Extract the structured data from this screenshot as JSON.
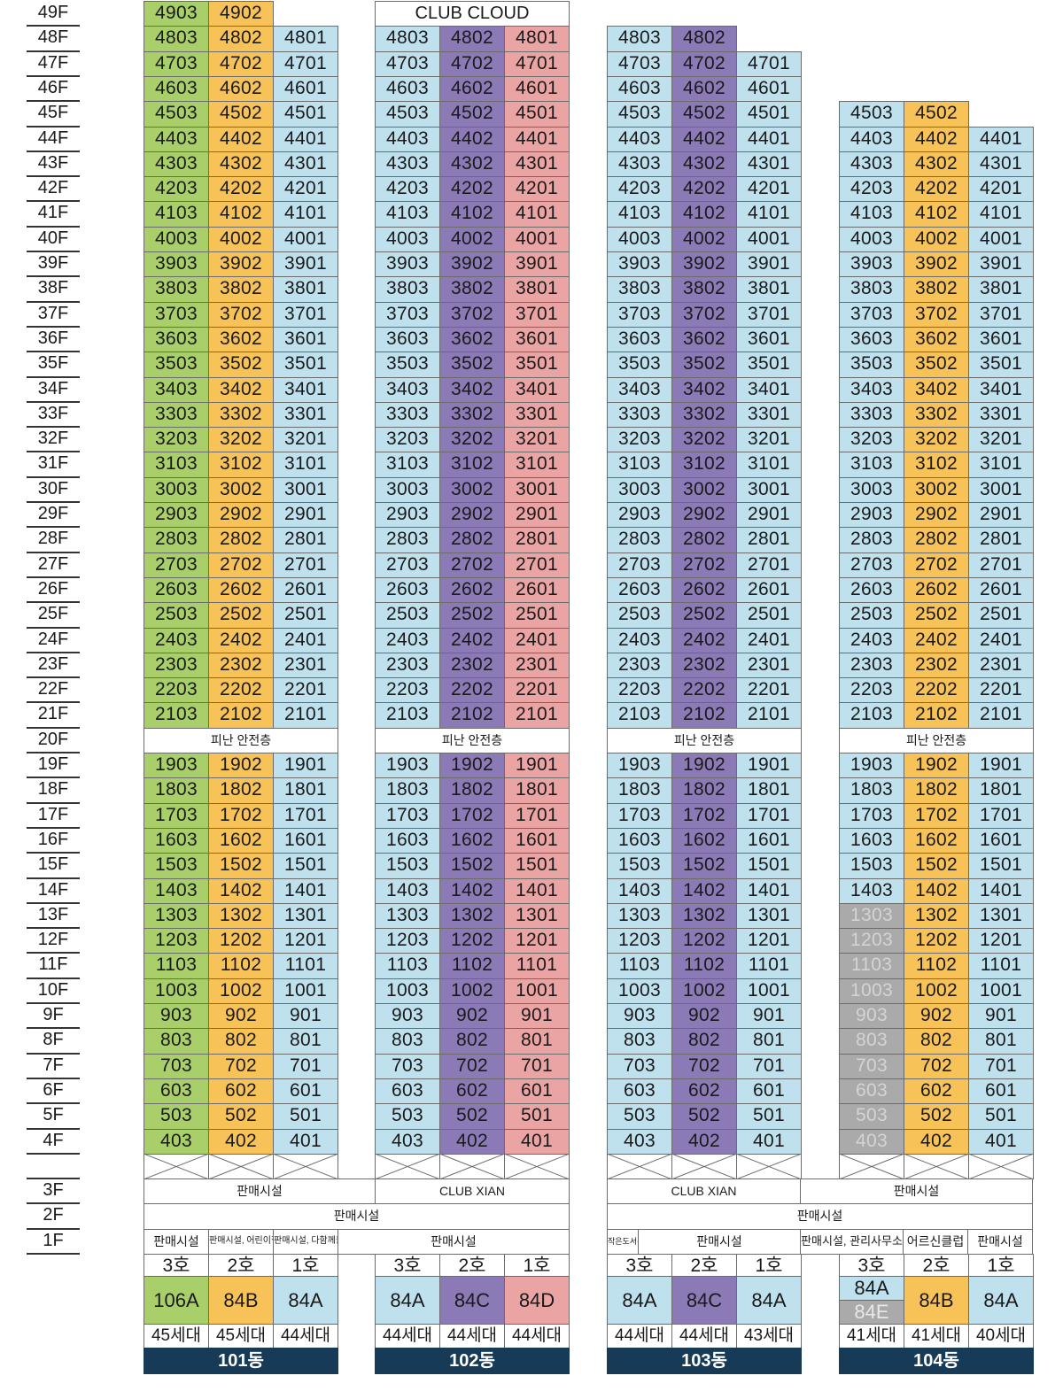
{
  "floors": [
    "49F",
    "48F",
    "47F",
    "46F",
    "45F",
    "44F",
    "43F",
    "42F",
    "41F",
    "40F",
    "39F",
    "38F",
    "37F",
    "36F",
    "35F",
    "34F",
    "33F",
    "32F",
    "31F",
    "30F",
    "29F",
    "28F",
    "27F",
    "26F",
    "25F",
    "24F",
    "23F",
    "22F",
    "21F",
    "20F",
    "19F",
    "18F",
    "17F",
    "16F",
    "15F",
    "14F",
    "13F",
    "12F",
    "11F",
    "10F",
    "9F",
    "8F",
    "7F",
    "6F",
    "5F",
    "4F",
    "",
    "3F",
    "2F",
    "1F"
  ],
  "colors": {
    "green": "#a9cf6a",
    "orange": "#f7c358",
    "blue": "#bfe1ee",
    "purple": "#8c7ab6",
    "pink": "#eba4a4",
    "gray": "#aaaaaa",
    "navy": "#173a57"
  },
  "refuge_label": "피난 안전층",
  "buildings": [
    {
      "name": "101동",
      "top_floor": 49,
      "top_label": "",
      "lines": [
        {
          "line": "3",
          "ho": "3호",
          "type": "106A",
          "households": "45세대",
          "color": "green",
          "max": 49
        },
        {
          "line": "2",
          "ho": "2호",
          "type": "84B",
          "households": "45세대",
          "color": "orange",
          "max": 49
        },
        {
          "line": "1",
          "ho": "1호",
          "type": "84A",
          "households": "44세대",
          "color": "blue",
          "max": 48
        }
      ],
      "f1": [
        "판매시설",
        "판매시설, 어린이집",
        "판매시설, 다함께돌봄센터"
      ]
    },
    {
      "name": "102동",
      "top_floor": 48,
      "top_label": "CLUB CLOUD",
      "lines": [
        {
          "line": "3",
          "ho": "3호",
          "type": "84A",
          "households": "44세대",
          "color": "blue",
          "max": 48
        },
        {
          "line": "2",
          "ho": "2호",
          "type": "84C",
          "households": "44세대",
          "color": "purple",
          "max": 48
        },
        {
          "line": "1",
          "ho": "1호",
          "type": "84D",
          "households": "44세대",
          "color": "pink",
          "max": 48
        }
      ],
      "f1": [
        "판매시설"
      ]
    },
    {
      "name": "103동",
      "top_floor": 48,
      "top_label": "",
      "lines": [
        {
          "line": "3",
          "ho": "3호",
          "type": "84A",
          "households": "44세대",
          "color": "blue",
          "max": 48
        },
        {
          "line": "2",
          "ho": "2호",
          "type": "84C",
          "households": "44세대",
          "color": "purple",
          "max": 48
        },
        {
          "line": "1",
          "ho": "1호",
          "type": "84A",
          "households": "43세대",
          "color": "blue",
          "max": 47
        }
      ],
      "f1": [
        "작은도서관",
        "판매시설"
      ]
    },
    {
      "name": "104동",
      "top_floor": 45,
      "top_label": "",
      "lines": [
        {
          "line": "3",
          "ho": "3호",
          "type": "84A",
          "type2": "84E",
          "households": "41세대",
          "color": "blue",
          "max": 45
        },
        {
          "line": "2",
          "ho": "2호",
          "type": "84B",
          "households": "41세대",
          "color": "orange",
          "max": 45
        },
        {
          "line": "1",
          "ho": "1호",
          "type": "84A",
          "households": "40세대",
          "color": "blue",
          "max": 44
        }
      ],
      "f1": [
        "판매시설, 관리사무소",
        "어르신클럽",
        "판매시설"
      ]
    }
  ],
  "f3": {
    "b101": "판매시설",
    "b102": "CLUB XIAN",
    "b103": "CLUB XIAN",
    "b104": "판매시설"
  },
  "f2": {
    "left": "판매시설",
    "right": "판매시설"
  }
}
